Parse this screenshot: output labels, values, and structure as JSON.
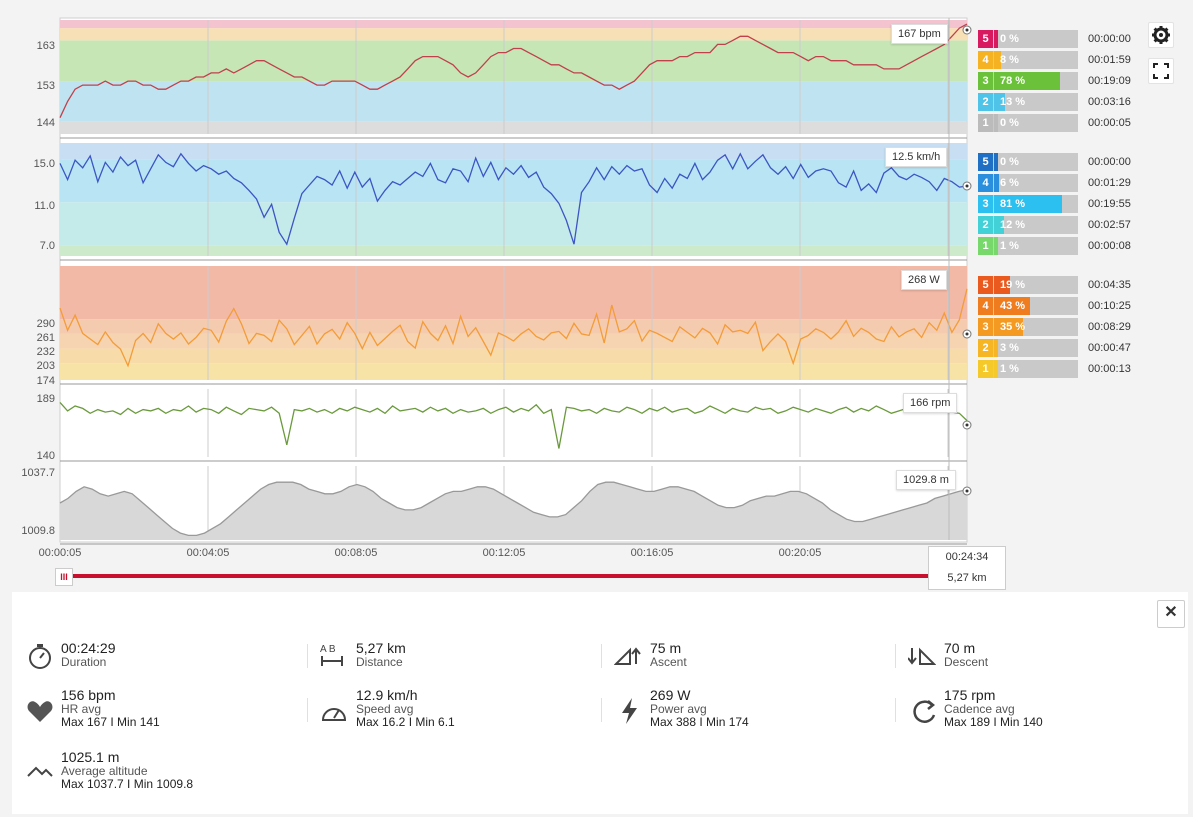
{
  "charts": {
    "hr": {
      "yticks": [
        "163",
        "153",
        "144"
      ],
      "tooltip": "167 bpm",
      "ymin": 140,
      "ymax": 168,
      "zones": [
        {
          "lo": 140,
          "hi": 143,
          "color": "#dddddd"
        },
        {
          "lo": 143,
          "hi": 153,
          "color": "#bfe3f0"
        },
        {
          "lo": 153,
          "hi": 163,
          "color": "#c6e6b6"
        },
        {
          "lo": 163,
          "hi": 166,
          "color": "#f7e0b5"
        },
        {
          "lo": 166,
          "hi": 168,
          "color": "#f3c3cf"
        }
      ],
      "line_color": "#c0404b",
      "values": [
        144,
        148,
        151,
        152,
        152,
        152,
        153,
        152,
        152,
        153,
        153,
        152,
        152,
        151,
        151,
        152,
        153,
        153,
        154,
        154,
        155,
        155,
        156,
        155,
        156,
        157,
        158,
        158,
        157,
        156,
        155,
        154,
        154,
        153,
        152,
        152,
        153,
        153,
        153,
        153,
        152,
        151,
        151,
        152,
        153,
        154,
        156,
        158,
        159,
        159,
        159,
        158,
        157,
        155,
        154,
        155,
        157,
        159,
        160,
        160,
        161,
        161,
        160,
        159,
        158,
        157,
        157,
        156,
        155,
        155,
        154,
        153,
        152,
        152,
        151,
        152,
        153,
        155,
        157,
        158,
        158,
        158,
        159,
        159,
        160,
        160,
        160,
        162,
        162,
        163,
        164,
        164,
        163,
        162,
        161,
        160,
        160,
        160,
        159,
        158,
        159,
        159,
        158,
        158,
        158,
        157,
        157,
        157,
        157,
        156,
        156,
        156,
        157,
        158,
        159,
        160,
        161,
        162,
        164,
        166,
        167
      ]
    },
    "speed": {
      "yticks": [
        "15.0",
        "11.0",
        "7.0"
      ],
      "tooltip": "12.5 km/h",
      "ymin": 6,
      "ymax": 16.5,
      "zones": [
        {
          "lo": 6,
          "hi": 7,
          "color": "#cdeacb"
        },
        {
          "lo": 7,
          "hi": 11,
          "color": "#c5eaea"
        },
        {
          "lo": 11,
          "hi": 15,
          "color": "#b8e4f3"
        },
        {
          "lo": 15,
          "hi": 16.5,
          "color": "#c8dff3"
        }
      ],
      "line_color": "#3c55c4",
      "values": [
        14.6,
        13.1,
        14.9,
        14.2,
        15.3,
        12.9,
        14.7,
        13.8,
        15.2,
        14.4,
        14.9,
        12.8,
        14.1,
        15.4,
        14.7,
        14.3,
        15.5,
        14.6,
        13.9,
        14.4,
        14.1,
        13.6,
        13.9,
        13.2,
        12.8,
        12.1,
        11.3,
        9.6,
        10.8,
        8.2,
        7.1,
        9.5,
        11.8,
        12.6,
        13.4,
        13.1,
        12.6,
        13.9,
        12.3,
        13.8,
        12.4,
        13.2,
        11.1,
        12.1,
        12.9,
        12.6,
        13.2,
        13.8,
        13.4,
        14.6,
        13.1,
        12.8,
        14.1,
        13.9,
        12.9,
        15.1,
        13.4,
        14.7,
        13.1,
        14.2,
        13.6,
        14.4,
        13.3,
        13.8,
        12.4,
        11.8,
        10.9,
        9.3,
        7.1,
        11.9,
        12.9,
        14.2,
        13.1,
        14.3,
        13.6,
        14.4,
        13.9,
        14.1,
        12.6,
        11.9,
        13.2,
        12.3,
        13.6,
        13.2,
        14.6,
        13.1,
        13.8,
        14.9,
        15.4,
        14.1,
        15.5,
        14.1,
        14.8,
        15.4,
        14.2,
        13.6,
        14.3,
        13.2,
        14.5,
        13.3,
        13.9,
        14.1,
        13.9,
        12.8,
        12.4,
        13.9,
        12.1,
        12.7,
        11.9,
        13.7,
        14.2,
        13.4,
        13.1,
        13.6,
        13.3,
        12.9,
        12.1,
        13.2,
        12.9,
        12.4,
        12.5
      ]
    },
    "power": {
      "yticks": [
        "290",
        "261",
        "232",
        "203",
        "174"
      ],
      "tooltip": "268 W",
      "ymin": 170,
      "ymax": 395,
      "zones": [
        {
          "lo": 170,
          "hi": 203,
          "color": "#f8e3a6"
        },
        {
          "lo": 203,
          "hi": 232,
          "color": "#f7dba9"
        },
        {
          "lo": 232,
          "hi": 261,
          "color": "#f6d3b1"
        },
        {
          "lo": 261,
          "hi": 290,
          "color": "#f5cbb0"
        },
        {
          "lo": 290,
          "hi": 395,
          "color": "#f2b9a6"
        }
      ],
      "line_color": "#f39c38",
      "values": [
        312,
        268,
        298,
        262,
        251,
        240,
        265,
        244,
        231,
        198,
        248,
        262,
        244,
        281,
        262,
        251,
        263,
        241,
        254,
        272,
        268,
        245,
        286,
        311,
        281,
        242,
        262,
        258,
        246,
        288,
        271,
        240,
        258,
        276,
        241,
        261,
        270,
        251,
        283,
        262,
        232,
        264,
        238,
        252,
        266,
        278,
        246,
        233,
        285,
        262,
        248,
        277,
        242,
        296,
        256,
        273,
        246,
        219,
        263,
        256,
        247,
        261,
        271,
        256,
        249,
        263,
        266,
        252,
        282,
        261,
        258,
        300,
        243,
        318,
        265,
        271,
        287,
        247,
        268,
        262,
        254,
        246,
        275,
        264,
        253,
        272,
        263,
        241,
        279,
        265,
        268,
        262,
        284,
        228,
        246,
        261,
        246,
        203,
        251,
        258,
        271,
        264,
        251,
        265,
        287,
        256,
        272,
        264,
        251,
        246,
        275,
        255,
        265,
        271,
        254,
        283,
        268,
        302,
        264,
        289,
        350
      ]
    },
    "cadence": {
      "yticks": [
        "189",
        "140"
      ],
      "tooltip": "166 rpm",
      "ymin": 136,
      "ymax": 192,
      "zones": [],
      "line_color": "#6a9a3c",
      "values": [
        181,
        174,
        178,
        176,
        172,
        175,
        173,
        174,
        171,
        176,
        172,
        175,
        174,
        176,
        172,
        175,
        174,
        178,
        173,
        176,
        175,
        172,
        177,
        174,
        171,
        176,
        175,
        174,
        177,
        172,
        146,
        175,
        174,
        176,
        173,
        175,
        172,
        176,
        174,
        177,
        175,
        173,
        176,
        172,
        178,
        174,
        175,
        176,
        173,
        177,
        174,
        176,
        172,
        175,
        173,
        174,
        176,
        172,
        175,
        177,
        173,
        176,
        174,
        179,
        172,
        175,
        143,
        177,
        176,
        174,
        175,
        172,
        176,
        174,
        173,
        177,
        175,
        172,
        176,
        174,
        177,
        173,
        175,
        176,
        172,
        174,
        178,
        175,
        172,
        176,
        174,
        173,
        177,
        175,
        176,
        172,
        174,
        177,
        175,
        173,
        176,
        174,
        172,
        175,
        177,
        173,
        176,
        174,
        178,
        175,
        172,
        174,
        176,
        173,
        175,
        177,
        174,
        176,
        173,
        172,
        166
      ]
    },
    "altitude": {
      "yticks": [
        "1037.7",
        "1009.8"
      ],
      "tooltip": "1029.8 m",
      "ymin": 1008,
      "ymax": 1040,
      "zones": [],
      "line_color": "#999999",
      "fill_color": "#d8d8d8",
      "values": [
        1024,
        1026,
        1029,
        1031,
        1030,
        1028,
        1027,
        1028,
        1029,
        1028,
        1025,
        1022,
        1019,
        1016,
        1013,
        1011,
        1010,
        1010,
        1011,
        1013,
        1015,
        1018,
        1021,
        1024,
        1027,
        1030,
        1032,
        1033,
        1033,
        1033,
        1032,
        1030,
        1029,
        1028,
        1028,
        1029,
        1031,
        1032,
        1031,
        1029,
        1026,
        1024,
        1022,
        1021,
        1021,
        1022,
        1024,
        1026,
        1028,
        1029,
        1029,
        1030,
        1031,
        1031,
        1030,
        1028,
        1026,
        1024,
        1022,
        1020,
        1019,
        1018,
        1018,
        1019,
        1022,
        1025,
        1029,
        1032,
        1033,
        1033,
        1032,
        1031,
        1030,
        1029,
        1029,
        1030,
        1031,
        1031,
        1030,
        1029,
        1027,
        1025,
        1023,
        1022,
        1022,
        1023,
        1025,
        1026,
        1027,
        1027,
        1028,
        1029,
        1029,
        1028,
        1026,
        1024,
        1021,
        1019,
        1017,
        1016,
        1016,
        1017,
        1018,
        1019,
        1020,
        1021,
        1022,
        1023,
        1024,
        1026,
        1027,
        1028,
        1029,
        1029.8
      ]
    },
    "xticks": [
      "00:00:05",
      "00:04:05",
      "00:08:05",
      "00:12:05",
      "00:16:05",
      "00:20:05"
    ]
  },
  "zones": {
    "hr": [
      {
        "num": "5",
        "pct": "0 %",
        "frac": 0.0,
        "color": "#d81b60",
        "time": "00:00:00"
      },
      {
        "num": "4",
        "pct": "8 %",
        "frac": 0.08,
        "color": "#f5b323",
        "time": "00:01:59"
      },
      {
        "num": "3",
        "pct": "78 %",
        "frac": 0.78,
        "color": "#6cc13b",
        "time": "00:19:09"
      },
      {
        "num": "2",
        "pct": "13 %",
        "frac": 0.13,
        "color": "#4fc3e8",
        "time": "00:03:16"
      },
      {
        "num": "1",
        "pct": "0 %",
        "frac": 0.0,
        "color": "#bbbbbb",
        "time": "00:00:05"
      }
    ],
    "speed": [
      {
        "num": "5",
        "pct": "0 %",
        "frac": 0.0,
        "color": "#1f6fc4",
        "time": "00:00:00"
      },
      {
        "num": "4",
        "pct": "6 %",
        "frac": 0.06,
        "color": "#2a8fdd",
        "time": "00:01:29"
      },
      {
        "num": "3",
        "pct": "81 %",
        "frac": 0.81,
        "color": "#2bc0ef",
        "time": "00:19:55"
      },
      {
        "num": "2",
        "pct": "12 %",
        "frac": 0.12,
        "color": "#43d1d8",
        "time": "00:02:57"
      },
      {
        "num": "1",
        "pct": "1 %",
        "frac": 0.01,
        "color": "#79d86c",
        "time": "00:00:08"
      }
    ],
    "power": [
      {
        "num": "5",
        "pct": "19 %",
        "frac": 0.19,
        "color": "#ea5a1f",
        "time": "00:04:35"
      },
      {
        "num": "4",
        "pct": "43 %",
        "frac": 0.43,
        "color": "#f07c20",
        "time": "00:10:25"
      },
      {
        "num": "3",
        "pct": "35 %",
        "frac": 0.35,
        "color": "#f49a22",
        "time": "00:08:29"
      },
      {
        "num": "2",
        "pct": "3 %",
        "frac": 0.03,
        "color": "#f6b524",
        "time": "00:00:47"
      },
      {
        "num": "1",
        "pct": "1 %",
        "frac": 0.01,
        "color": "#f6c92a",
        "time": "00:00:13"
      }
    ]
  },
  "timeline": {
    "cursor_time": "00:24:34",
    "cursor_distance": "5,27 km",
    "handle_label": "III"
  },
  "summary": {
    "duration": {
      "value": "00:24:29",
      "label": "Duration"
    },
    "distance": {
      "value": "5,27 km",
      "label": "Distance",
      "icon_letters": "A  B"
    },
    "ascent": {
      "value": "75 m",
      "label": "Ascent"
    },
    "descent": {
      "value": "70 m",
      "label": "Descent"
    },
    "hr": {
      "value": "156 bpm",
      "label": "HR avg",
      "minmax": "Max 167  I  Min 141"
    },
    "speed": {
      "value": "12.9 km/h",
      "label": "Speed avg",
      "minmax": "Max 16.2  I  Min 6.1"
    },
    "power": {
      "value": "269 W",
      "label": "Power avg",
      "minmax": "Max 388  I  Min 174"
    },
    "cadence": {
      "value": "175 rpm",
      "label": "Cadence avg",
      "minmax": "Max 189  I  Min 140"
    },
    "altitude": {
      "value": "1025.1 m",
      "label": "Average altitude",
      "minmax": "Max 1037.7  I  Min 1009.8"
    }
  },
  "buttons": {
    "close_label": "✕"
  },
  "icons": {
    "settings": "gear-icon",
    "fullscreen": "expand-icon"
  }
}
